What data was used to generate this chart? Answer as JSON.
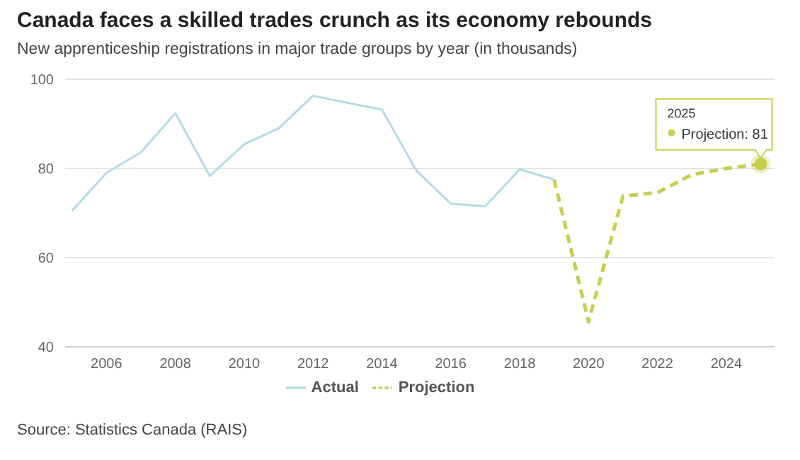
{
  "chart_data": {
    "type": "line",
    "title": "Canada faces a skilled trades crunch as its economy rebounds",
    "subtitle": "New apprenticeship registrations in major trade groups by year (in thousands)",
    "x": [
      2005,
      2006,
      2007,
      2008,
      2009,
      2010,
      2011,
      2012,
      2013,
      2014,
      2015,
      2016,
      2017,
      2018,
      2019,
      2020,
      2021,
      2022,
      2023,
      2024,
      2025
    ],
    "series": [
      {
        "name": "Actual",
        "color": "#b3dce4",
        "line_style": "solid",
        "values": [
          70.5,
          79,
          83.6,
          92.4,
          78.3,
          85.4,
          89,
          96.3,
          94.7,
          93.2,
          79.5,
          72.1,
          71.5,
          79.8,
          77.5,
          null,
          null,
          null,
          null,
          null,
          null
        ]
      },
      {
        "name": "Projection",
        "color": "#c8cf4c",
        "line_style": "dashed",
        "values": [
          null,
          null,
          null,
          null,
          null,
          null,
          null,
          null,
          null,
          null,
          null,
          null,
          null,
          null,
          77.5,
          45.6,
          73.8,
          74.6,
          78.6,
          80,
          81
        ]
      }
    ],
    "xlim": [
      2004.8,
      2025.4
    ],
    "xticks": [
      2006,
      2008,
      2010,
      2012,
      2014,
      2016,
      2018,
      2020,
      2022,
      2024
    ],
    "ylim": [
      40,
      100
    ],
    "yticks": [
      40,
      60,
      80,
      100
    ],
    "grid": "y",
    "legend": "bottom",
    "marker": "none",
    "annotations": [
      "2025",
      {
        "text": "Projection: 81",
        "x": 2025,
        "y": 81
      },
      "Source: Statistics Canada (RAIS)"
    ]
  }
}
